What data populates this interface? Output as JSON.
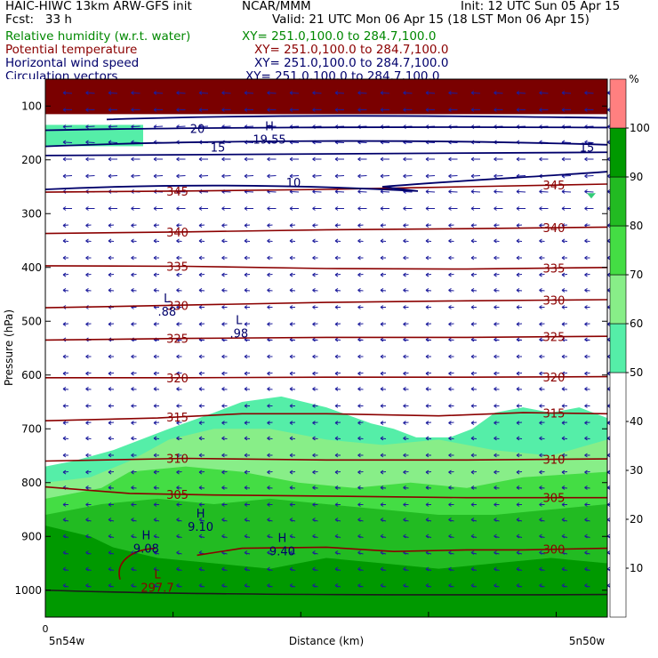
{
  "header": {
    "title_left": "HAIC-HIWC 13km ARW-GFS init",
    "title_center": "NCAR/MMM",
    "init": "Init: 12 UTC Sun 05 Apr 15",
    "fcst": "Fcst:   33 h",
    "valid": "Valid: 21 UTC Mon 06 Apr 15 (18 LST Mon 06 Apr 15)",
    "fields": [
      {
        "name": "Relative humidity (w.r.t. water)",
        "xy": "XY= 251.0,100.0 to 284.7,100.0",
        "color": "#008800"
      },
      {
        "name": "Potential temperature",
        "xy": "XY= 251.0,100.0 to 284.7,100.0",
        "color": "#8b0000"
      },
      {
        "name": "Horizontal wind speed",
        "xy": "XY= 251.0,100.0 to 284.7,100.0",
        "color": "#00006b"
      },
      {
        "name": "Circulation vectors",
        "xy": "XY= 251.0,100.0 to 284.7,100.0",
        "color": "#00006b"
      }
    ]
  },
  "chart_data": {
    "type": "cross-section",
    "xlabel": "Distance (km)",
    "x_start_tick": "0",
    "x_left_label": "5n54w",
    "x_right_label": "5n50w",
    "ylabel": "Pressure (hPa)",
    "y_scale": "linear",
    "ylim": [
      1050,
      50
    ],
    "y_ticks": [
      100,
      200,
      300,
      400,
      500,
      600,
      700,
      800,
      900,
      1000
    ],
    "colorbar": {
      "unit": "%",
      "ticks": [
        10,
        20,
        30,
        40,
        50,
        60,
        70,
        80,
        90,
        100
      ],
      "bins": [
        {
          "from": 0,
          "to": 50,
          "color": "#ffffff"
        },
        {
          "from": 50,
          "to": 60,
          "color": "#55eea8"
        },
        {
          "from": 60,
          "to": 70,
          "color": "#88ee88"
        },
        {
          "from": 70,
          "to": 80,
          "color": "#44dd44"
        },
        {
          "from": 80,
          "to": 90,
          "color": "#22bb22"
        },
        {
          "from": 90,
          "to": 100,
          "color": "#009900"
        },
        {
          "from": 100,
          "to": 110,
          "color": "#ff8080"
        }
      ]
    },
    "rh_regions": [
      {
        "level": 50,
        "color": "#55eea8",
        "outline_x": [
          0,
          0.05,
          0.12,
          0.22,
          0.3,
          0.35,
          0.42,
          0.5,
          0.58,
          0.62,
          0.66,
          0.72,
          0.76,
          0.8,
          0.85,
          0.9,
          0.95,
          1.0
        ],
        "outline_p": [
          770,
          760,
          740,
          700,
          670,
          650,
          640,
          660,
          690,
          700,
          716,
          716,
          700,
          670,
          660,
          670,
          660,
          680
        ]
      },
      {
        "level": 60,
        "color": "#88ee88",
        "outline_x": [
          0,
          0.08,
          0.15,
          0.22,
          0.3,
          0.4,
          0.5,
          0.6,
          0.7,
          0.8,
          0.9,
          1.0
        ],
        "outline_p": [
          800,
          790,
          760,
          720,
          700,
          700,
          720,
          730,
          720,
          740,
          750,
          720
        ]
      },
      {
        "level": 70,
        "color": "#44dd44",
        "outline_x": [
          0,
          0.1,
          0.15,
          0.25,
          0.35,
          0.45,
          0.55,
          0.65,
          0.75,
          0.85,
          1.0
        ],
        "outline_p": [
          830,
          810,
          780,
          770,
          780,
          800,
          810,
          800,
          810,
          790,
          780
        ]
      },
      {
        "level": 80,
        "color": "#22bb22",
        "outline_x": [
          0,
          0.1,
          0.2,
          0.3,
          0.4,
          0.5,
          0.6,
          0.7,
          0.8,
          0.9,
          1.0
        ],
        "outline_p": [
          860,
          840,
          830,
          840,
          830,
          840,
          850,
          860,
          860,
          850,
          840
        ]
      },
      {
        "level": 90,
        "color": "#009900",
        "outline_x": [
          0,
          0.08,
          0.12,
          0.2,
          0.3,
          0.4,
          0.5,
          0.6,
          0.7,
          0.8,
          0.9,
          1.0
        ],
        "outline_p": [
          880,
          900,
          920,
          940,
          950,
          960,
          940,
          950,
          960,
          950,
          940,
          950
        ]
      },
      {
        "level": 100,
        "color": "#7a0000",
        "outline_x": [
          0,
          1.0
        ],
        "outline_p": [
          115,
          115
        ]
      }
    ],
    "theta_isentropes": {
      "unit": "K",
      "color": "#8b0000",
      "lines": [
        {
          "value": 345,
          "x": [
            0,
            0.25,
            0.5,
            0.75,
            1.0
          ],
          "p": [
            260,
            258,
            255,
            250,
            245
          ],
          "label": "345"
        },
        {
          "value": 340,
          "x": [
            0,
            0.25,
            0.5,
            0.75,
            1.0
          ],
          "p": [
            337,
            334,
            330,
            328,
            325
          ],
          "label": "340"
        },
        {
          "value": 335,
          "x": [
            0,
            0.25,
            0.5,
            0.75,
            1.0
          ],
          "p": [
            397,
            398,
            402,
            403,
            400
          ],
          "label": "335"
        },
        {
          "value": 330,
          "x": [
            0,
            0.25,
            0.5,
            0.75,
            1.0
          ],
          "p": [
            475,
            470,
            465,
            462,
            460
          ],
          "label": "330"
        },
        {
          "value": 325,
          "x": [
            0,
            0.25,
            0.5,
            0.75,
            1.0
          ],
          "p": [
            535,
            532,
            530,
            530,
            528
          ],
          "label": "325"
        },
        {
          "value": 320,
          "x": [
            0,
            0.25,
            0.5,
            0.75,
            1.0
          ],
          "p": [
            605,
            605,
            604,
            604,
            603
          ],
          "label": "320"
        },
        {
          "value": 315,
          "x": [
            0,
            0.2,
            0.35,
            0.5,
            0.7,
            0.85,
            1.0
          ],
          "p": [
            685,
            680,
            672,
            672,
            676,
            670,
            672
          ],
          "label": "315"
        },
        {
          "value": 310,
          "x": [
            0,
            0.25,
            0.5,
            0.75,
            1.0
          ],
          "p": [
            760,
            755,
            758,
            758,
            756
          ],
          "label": "310"
        },
        {
          "value": 305,
          "x": [
            0,
            0.15,
            0.3,
            0.5,
            0.75,
            1.0
          ],
          "p": [
            808,
            820,
            823,
            825,
            828,
            828
          ],
          "label": "305"
        },
        {
          "value": 300,
          "x": [
            0.27,
            0.35,
            0.5,
            0.62,
            0.75,
            0.85,
            1.0
          ],
          "p": [
            935,
            922,
            920,
            928,
            925,
            925,
            922
          ],
          "label": "300"
        }
      ]
    },
    "wind_speed_contours": {
      "unit": "m/s",
      "color": "#00006b",
      "labels": [
        "10",
        "15",
        "15",
        "20"
      ]
    },
    "annotations": [
      {
        "text": "L",
        "x": 0.76,
        "p": 465,
        "color": "#00006b"
      },
      {
        "text": ".88",
        "x": 0.76,
        "p": 490,
        "color": "#00006b"
      },
      {
        "text": "L",
        "x": 1.21,
        "p": 505,
        "color": "#00006b"
      },
      {
        "text": ".98",
        "x": 1.21,
        "p": 530,
        "color": "#00006b"
      },
      {
        "text": "H",
        "x": 1.4,
        "p": 145,
        "color": "#00006b"
      },
      {
        "text": "19.55",
        "x": 1.4,
        "p": 170,
        "color": "#00006b"
      },
      {
        "text": "H",
        "x": 0.97,
        "p": 865,
        "color": "#00006b"
      },
      {
        "text": "9.10",
        "x": 0.97,
        "p": 890,
        "color": "#00006b"
      },
      {
        "text": "H",
        "x": 0.63,
        "p": 905,
        "color": "#00006b"
      },
      {
        "text": "9.08",
        "x": 0.63,
        "p": 930,
        "color": "#00006b"
      },
      {
        "text": "H",
        "x": 1.48,
        "p": 910,
        "color": "#00006b"
      },
      {
        "text": "9.40",
        "x": 1.48,
        "p": 935,
        "color": "#00006b"
      },
      {
        "text": "L",
        "x": 0.7,
        "p": 978,
        "color": "#8b0000"
      },
      {
        "text": "297.7",
        "x": 0.7,
        "p": 1003,
        "color": "#8b0000"
      }
    ]
  }
}
